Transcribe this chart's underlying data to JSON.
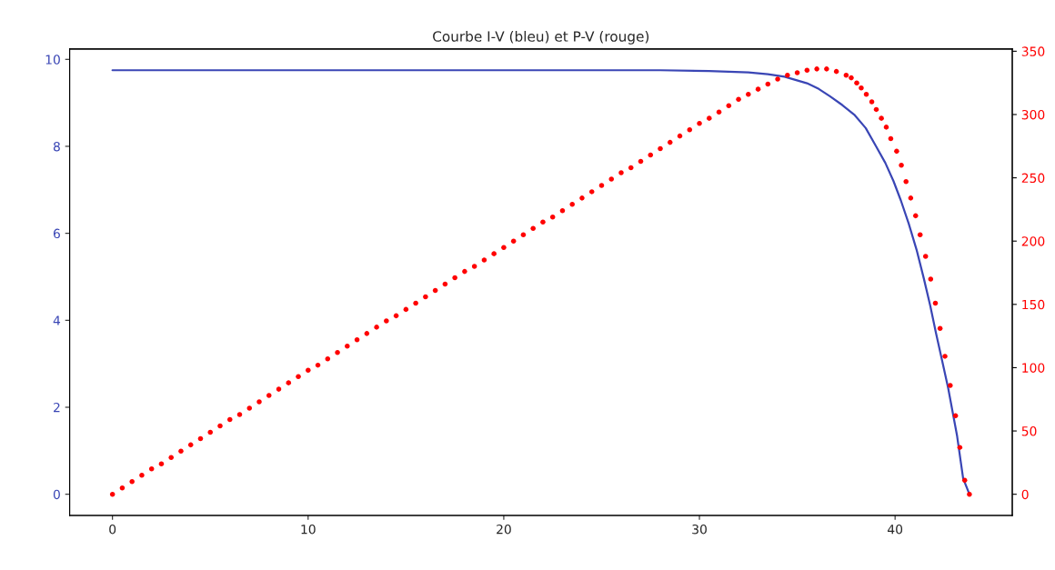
{
  "chart_data": {
    "type": "line",
    "title": "Courbe I-V (bleu) et P-V (rouge)",
    "xlim": [
      -2.19,
      45.99
    ],
    "xticks": [
      0,
      10,
      20,
      30,
      40
    ],
    "ylim": [
      -0.4875,
      10.2375
    ],
    "yticks": [
      0,
      2,
      4,
      6,
      8,
      10
    ],
    "y2lim": [
      -16.75,
      351.75
    ],
    "y2ticks": [
      0,
      50,
      100,
      150,
      200,
      250,
      300,
      350
    ],
    "series": [
      {
        "axis": "y",
        "color": "#3a46b5",
        "line_style": "solid",
        "x": [
          0,
          10,
          20,
          28,
          30.49,
          32.5,
          33.5,
          34.35,
          35.5,
          36.1,
          36.67,
          37.3,
          37.91,
          38.5,
          38.99,
          39.5,
          39.92,
          40.3,
          40.7,
          41.1,
          41.47,
          41.8,
          42.09,
          42.4,
          42.71,
          43.17,
          43.48,
          43.8
        ],
        "values": [
          9.75,
          9.75,
          9.75,
          9.75,
          9.73,
          9.7,
          9.66,
          9.6,
          9.45,
          9.32,
          9.15,
          8.95,
          8.73,
          8.42,
          8.03,
          7.62,
          7.2,
          6.75,
          6.22,
          5.62,
          4.96,
          4.33,
          3.71,
          3.08,
          2.45,
          1.34,
          0.36,
          0
        ]
      },
      {
        "type": "scatter",
        "axis": "y2",
        "color": "#ff0000",
        "marker": "circle",
        "x": [
          0,
          0.5,
          1,
          1.5,
          2,
          2.5,
          3,
          3.5,
          4,
          4.5,
          5,
          5.5,
          6,
          6.5,
          7,
          7.5,
          8,
          8.5,
          9,
          9.5,
          10,
          10.5,
          11,
          11.5,
          12,
          12.5,
          13,
          13.5,
          14,
          14.5,
          15,
          15.5,
          16,
          16.5,
          17,
          17.5,
          18,
          18.5,
          19,
          19.5,
          20,
          20.5,
          21,
          21.5,
          22,
          22.5,
          23,
          23.5,
          24,
          24.5,
          25,
          25.5,
          26,
          26.5,
          27,
          27.5,
          28,
          28.5,
          29,
          29.5,
          30,
          30.5,
          31,
          31.5,
          32,
          32.5,
          33,
          33.5,
          34,
          34.5,
          35,
          35.5,
          36,
          36.5,
          37,
          37.5,
          37.76,
          38.04,
          38.27,
          38.53,
          38.81,
          39.04,
          39.3,
          39.55,
          39.78,
          40.08,
          40.32,
          40.56,
          40.8,
          41.05,
          41.28,
          41.56,
          41.82,
          42.06,
          42.3,
          42.55,
          42.82,
          43.09,
          43.31,
          43.56,
          43.8
        ],
        "values": [
          0,
          5,
          10,
          15,
          20,
          24,
          29,
          34,
          39,
          44,
          49,
          54,
          59,
          63,
          68,
          73,
          78,
          83,
          88,
          93,
          98,
          102,
          107,
          112,
          117,
          122,
          127,
          132,
          137,
          141,
          146,
          151,
          156,
          161,
          166,
          171,
          176,
          180,
          185,
          190,
          195,
          200,
          205,
          210,
          215,
          219,
          224,
          229,
          234,
          239,
          244,
          249,
          254,
          258,
          263,
          268,
          273,
          278,
          283,
          288,
          293,
          297,
          302,
          307,
          312,
          316,
          320,
          324,
          328,
          331,
          333,
          335,
          336,
          336,
          334,
          331,
          329,
          325,
          321,
          316,
          310,
          304,
          297,
          290,
          281,
          271,
          260,
          247,
          234,
          220,
          205,
          188,
          170,
          151,
          131,
          109,
          86,
          62,
          37,
          11,
          0
        ]
      }
    ]
  }
}
